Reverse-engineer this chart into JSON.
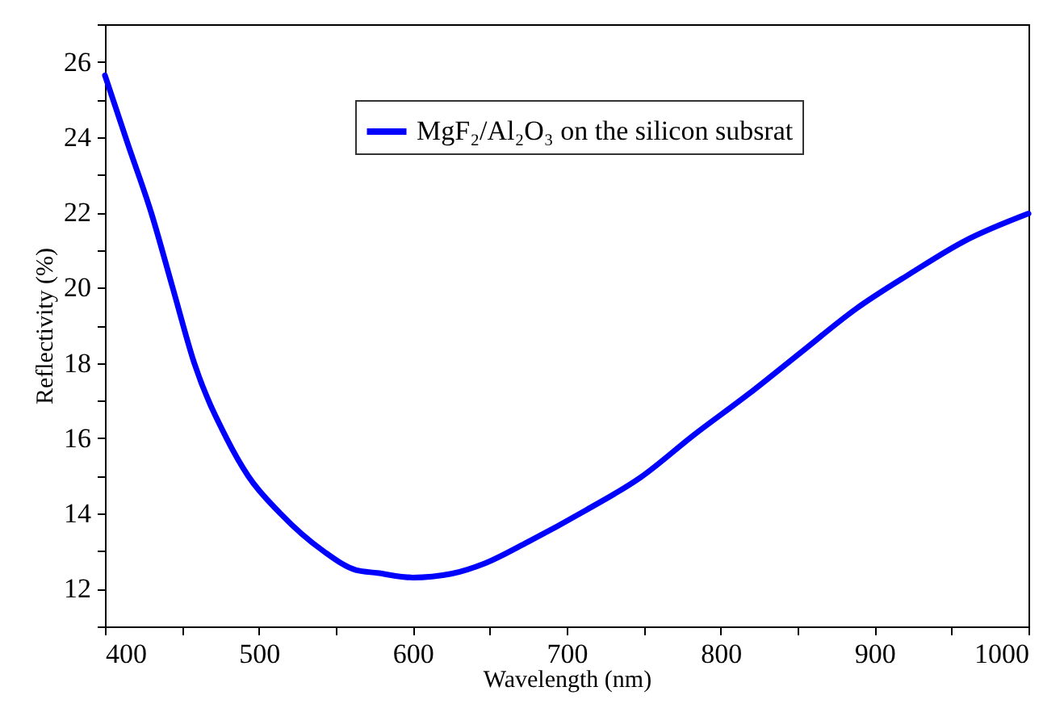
{
  "chart_data": {
    "type": "line",
    "xlabel": "Wavelength (nm)",
    "ylabel": "Reflectivity (%)",
    "x": [
      400,
      415,
      430,
      444,
      458,
      479,
      493,
      514,
      542,
      563,
      577,
      600,
      625,
      647,
      675,
      713,
      748,
      783,
      818,
      853,
      888,
      923,
      958,
      1000
    ],
    "series": [
      {
        "name": "MgF₂/Al₂O₃ on the silicon subsrat",
        "color": "#0000ff",
        "values": [
          25.64,
          23.8,
          22,
          20,
          18,
          16,
          15,
          14,
          13,
          12.5,
          12.42,
          12.3,
          12.4,
          12.68,
          13.25,
          14.1,
          14.96,
          16.1,
          17.17,
          18.31,
          19.44,
          20.37,
          21.23,
          21.97
        ]
      }
    ],
    "xlim": [
      400,
      1000
    ],
    "ylim": [
      11,
      27
    ],
    "xticks": [
      400,
      {
        "value": 450,
        "label": null
      },
      500,
      {
        "value": 550,
        "label": null
      },
      600,
      {
        "value": 650,
        "label": null
      },
      700,
      {
        "value": 750,
        "label": null
      },
      800,
      {
        "value": 850,
        "label": null
      },
      900,
      {
        "value": 950,
        "label": null
      },
      1000
    ],
    "yticks": [
      {
        "value": 11,
        "label": null
      },
      12,
      {
        "value": 13,
        "label": null
      },
      14,
      {
        "value": 15,
        "label": null
      },
      16,
      {
        "value": 17,
        "label": null
      },
      18,
      {
        "value": 19,
        "label": null
      },
      20,
      {
        "value": 21,
        "label": null
      },
      22,
      {
        "value": 23,
        "label": null
      },
      24,
      {
        "value": 25,
        "label": null
      },
      26,
      {
        "value": 27,
        "label": null
      }
    ],
    "legend": "top",
    "grid": false,
    "marker": "none",
    "line_style": "solid"
  }
}
